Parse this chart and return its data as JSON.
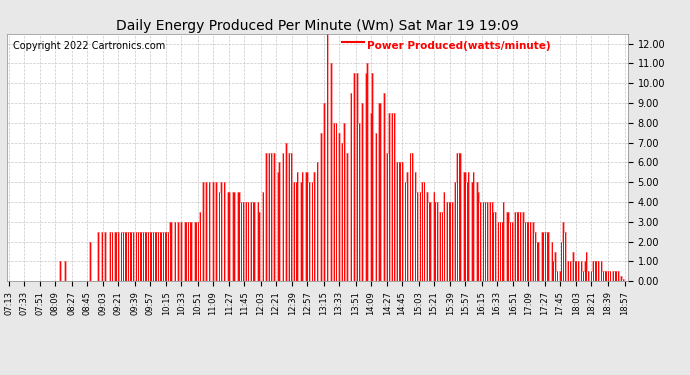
{
  "title": "Daily Energy Produced Per Minute (Wm) Sat Mar 19 19:09",
  "copyright": "Copyright 2022 Cartronics.com",
  "legend_label": "Power Produced(watts/minute)",
  "legend_color": "red",
  "title_color": "black",
  "background_color": "#e8e8e8",
  "plot_bg_color": "#ffffff",
  "grid_color": "#bbbbbb",
  "line_color": "red",
  "ylim": [
    0.0,
    12.5
  ],
  "yticks": [
    0.0,
    1.0,
    2.0,
    3.0,
    4.0,
    5.0,
    6.0,
    7.0,
    8.0,
    9.0,
    10.0,
    11.0,
    12.0
  ],
  "ytick_labels": [
    "0.00",
    "1.00",
    "2.00",
    "3.00",
    "4.00",
    "5.00",
    "6.00",
    "7.00",
    "8.00",
    "9.00",
    "10.00",
    "11.00",
    "12.00"
  ],
  "xtick_labels": [
    "07:13",
    "07:33",
    "07:51",
    "08:09",
    "08:27",
    "08:45",
    "09:03",
    "09:21",
    "09:39",
    "09:57",
    "10:15",
    "10:33",
    "10:51",
    "11:09",
    "11:27",
    "11:45",
    "12:03",
    "12:21",
    "12:39",
    "12:57",
    "13:15",
    "13:33",
    "13:51",
    "14:09",
    "14:27",
    "14:45",
    "15:03",
    "15:21",
    "15:39",
    "15:57",
    "16:15",
    "16:33",
    "16:51",
    "17:09",
    "17:27",
    "17:45",
    "18:03",
    "18:21",
    "18:39",
    "18:57"
  ],
  "data_values": [
    0.0,
    0.0,
    0.0,
    0.0,
    0.0,
    0.0,
    0.0,
    0.0,
    0.0,
    0.0,
    0.0,
    0.0,
    0.0,
    0.0,
    0.0,
    0.0,
    0.0,
    0.0,
    0.0,
    0.0,
    0.0,
    0.0,
    0.0,
    0.0,
    0.0,
    0.0,
    0.0,
    0.0,
    0.0,
    0.0,
    0.0,
    1.0,
    0.0,
    0.0,
    1.0,
    0.0,
    0.0,
    0.0,
    0.0,
    0.0,
    0.0,
    0.0,
    0.0,
    0.0,
    0.0,
    0.0,
    0.0,
    0.0,
    0.0,
    2.0,
    0.0,
    0.0,
    0.0,
    0.0,
    2.5,
    0.0,
    2.5,
    0.0,
    2.5,
    0.0,
    0.0,
    2.5,
    2.5,
    0.0,
    2.5,
    2.5,
    2.5,
    0.0,
    2.5,
    2.5,
    2.5,
    2.5,
    2.5,
    2.5,
    2.5,
    2.5,
    0.0,
    2.5,
    2.5,
    2.5,
    2.5,
    2.5,
    2.5,
    2.5,
    2.5,
    2.5,
    2.5,
    2.5,
    2.5,
    2.5,
    2.5,
    2.5,
    2.5,
    2.5,
    2.5,
    2.5,
    2.5,
    3.0,
    3.0,
    0.0,
    3.0,
    0.0,
    3.0,
    0.0,
    3.0,
    0.0,
    3.0,
    3.0,
    3.0,
    3.0,
    3.0,
    0.0,
    3.0,
    3.0,
    3.0,
    3.5,
    0.0,
    5.0,
    0.0,
    5.0,
    0.0,
    5.0,
    0.0,
    5.0,
    0.0,
    5.0,
    0.0,
    4.5,
    5.0,
    0.0,
    5.0,
    0.0,
    4.5,
    4.5,
    0.0,
    4.5,
    4.5,
    0.0,
    4.5,
    4.5,
    4.0,
    4.0,
    0.0,
    4.0,
    4.0,
    0.0,
    4.0,
    4.0,
    4.0,
    0.0,
    4.0,
    3.5,
    0.0,
    4.5,
    0.0,
    6.5,
    0.0,
    6.5,
    6.5,
    0.0,
    6.5,
    0.0,
    5.5,
    6.0,
    0.0,
    6.5,
    0.0,
    7.0,
    0.0,
    6.5,
    6.5,
    0.0,
    5.0,
    5.0,
    5.5,
    0.0,
    5.0,
    5.5,
    0.0,
    5.5,
    5.5,
    5.0,
    0.0,
    5.0,
    5.5,
    0.0,
    6.0,
    0.0,
    7.5,
    0.0,
    9.0,
    0.0,
    12.5,
    0.0,
    11.0,
    0.0,
    8.0,
    8.0,
    0.0,
    7.5,
    0.0,
    7.0,
    8.0,
    0.0,
    6.5,
    0.0,
    9.5,
    0.0,
    10.5,
    0.0,
    10.5,
    8.0,
    0.0,
    9.0,
    0.0,
    10.5,
    11.0,
    0.0,
    8.5,
    10.5,
    0.0,
    7.5,
    0.0,
    9.0,
    9.0,
    0.0,
    9.5,
    0.0,
    6.5,
    8.5,
    0.0,
    8.5,
    8.5,
    0.0,
    6.0,
    6.0,
    6.0,
    6.0,
    0.0,
    5.0,
    5.5,
    0.0,
    6.5,
    6.5,
    0.0,
    5.5,
    4.5,
    0.0,
    4.5,
    5.0,
    5.0,
    0.0,
    4.5,
    4.0,
    4.0,
    0.0,
    4.5,
    4.0,
    4.0,
    0.0,
    3.5,
    3.5,
    4.5,
    0.0,
    4.0,
    4.0,
    4.0,
    4.0,
    0.0,
    5.0,
    6.5,
    6.5,
    6.5,
    0.0,
    5.5,
    5.5,
    5.0,
    5.5,
    0.0,
    5.0,
    5.5,
    0.0,
    5.0,
    4.5,
    4.0,
    0.0,
    4.0,
    4.0,
    4.0,
    0.0,
    4.0,
    4.0,
    3.5,
    3.5,
    0.0,
    3.0,
    3.0,
    3.0,
    4.0,
    0.0,
    3.5,
    3.5,
    3.0,
    3.0,
    0.0,
    3.5,
    3.5,
    3.5,
    3.5,
    0.0,
    3.5,
    3.0,
    3.0,
    3.0,
    3.0,
    0.0,
    3.0,
    2.5,
    2.0,
    2.0,
    0.0,
    2.5,
    2.5,
    2.5,
    2.5,
    2.5,
    0.0,
    2.0,
    1.0,
    1.5,
    0.5,
    0.0,
    0.5,
    2.0,
    3.0,
    2.5,
    0.0,
    1.0,
    1.0,
    0.0,
    1.5,
    1.0,
    1.0,
    1.0,
    0.0,
    1.0,
    0.5,
    1.0,
    1.5,
    0.5,
    0.0,
    0.5,
    1.0,
    1.0,
    1.0,
    1.0,
    0.0,
    1.0,
    0.5,
    0.5,
    0.5,
    0.5,
    0.5,
    0.0,
    0.5,
    0.5,
    0.5,
    0.5,
    0.0,
    0.25,
    0.1,
    0.0
  ]
}
